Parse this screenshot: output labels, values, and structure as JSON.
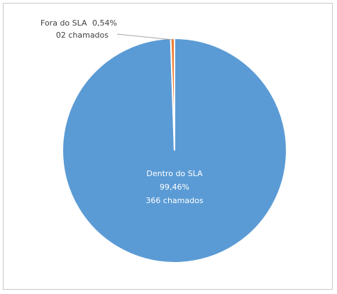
{
  "chart_data": {
    "type": "pie",
    "title": "",
    "slices": [
      {
        "name": "Dentro do SLA",
        "value": 99.46,
        "percent_label": "99,46%",
        "count_label": "366 chamados",
        "color": "#5b9bd5"
      },
      {
        "name": "Fora do SLA",
        "value": 0.54,
        "percent_label": "0,54%",
        "count_label": "02 chamados",
        "color": "#ed7d31"
      }
    ],
    "legend": "none",
    "slice_border_color": "#ffffff"
  }
}
